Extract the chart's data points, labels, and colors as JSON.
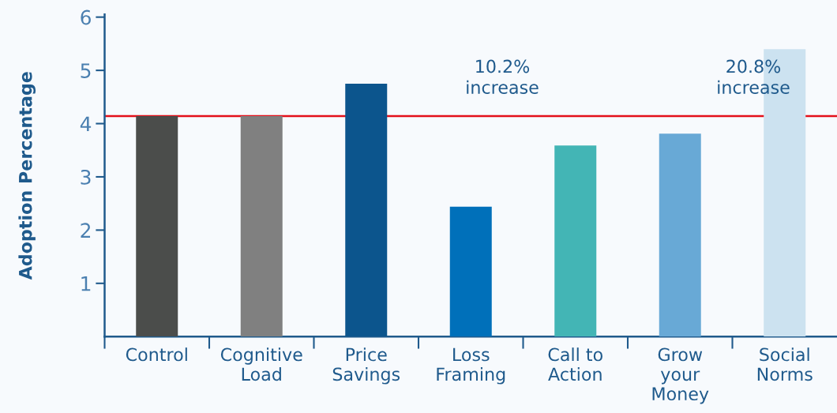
{
  "chart_data": {
    "type": "bar",
    "ylabel": "Adoption Percentage",
    "categories": [
      "Control",
      "Cognitive\nLoad",
      "Price\nSavings",
      "Loss\nFraming",
      "Call to\nAction",
      "Grow\nyour\nMoney",
      "Social\nNorms"
    ],
    "values": [
      4.14,
      4.14,
      4.75,
      2.44,
      3.59,
      3.81,
      5.4
    ],
    "colors": [
      "#4b4d4b",
      "#808080",
      "#0c558d",
      "#0070ba",
      "#43b5b5",
      "#68a9d6",
      "#cce2f0"
    ],
    "ylim": [
      0,
      6.05
    ],
    "yticks": [
      1,
      2,
      3,
      4,
      5,
      6
    ],
    "grid": false,
    "ref_lines": [
      {
        "axis": "y",
        "value": 4.14,
        "color": "#e3101a"
      }
    ],
    "annotations": [
      "10.2%\nincrease",
      "20.8%\nincrease"
    ]
  }
}
